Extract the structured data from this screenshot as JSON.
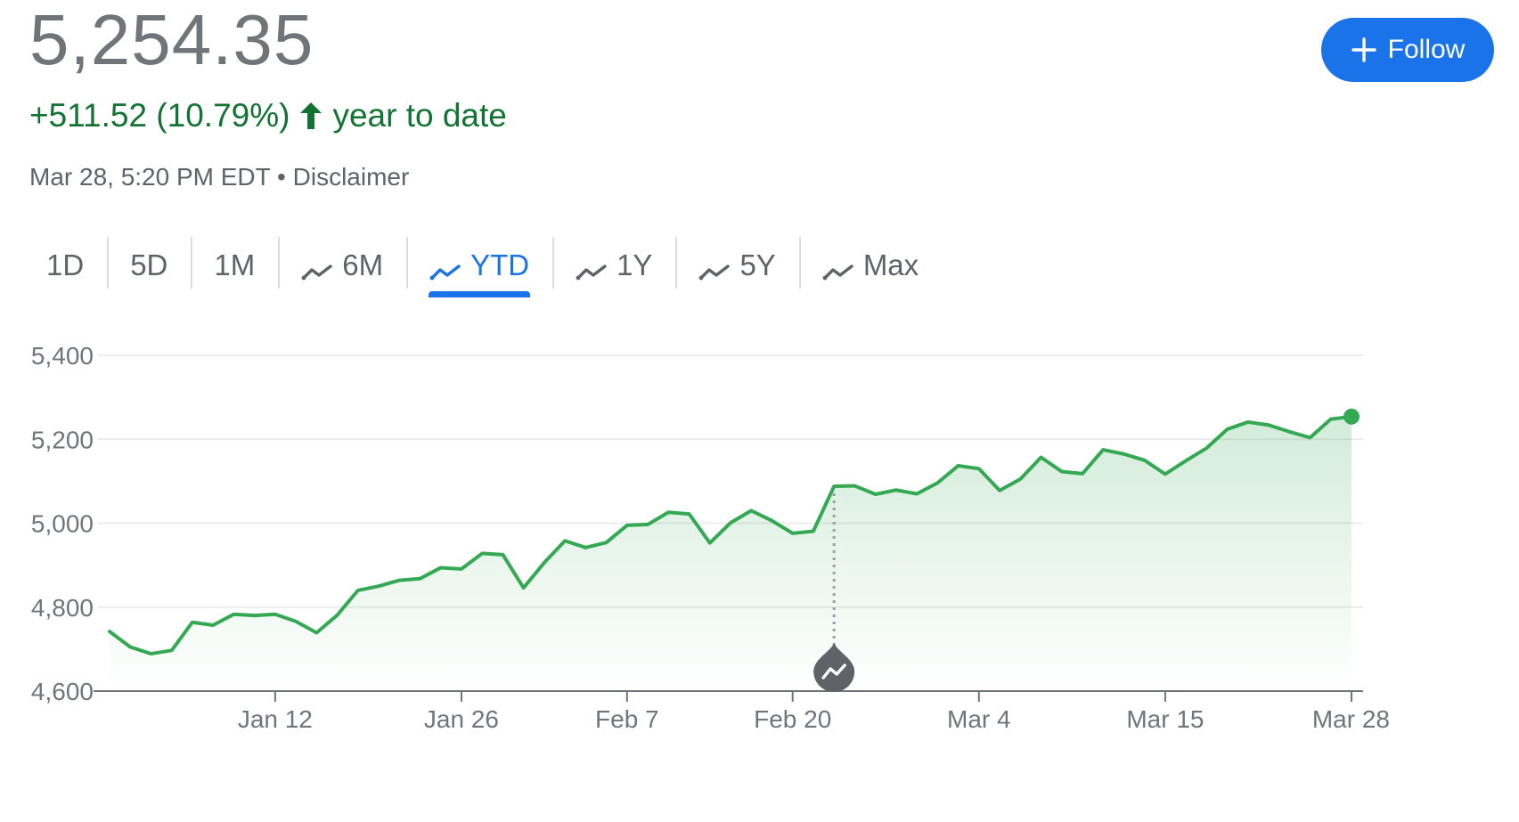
{
  "header": {
    "price": "5,254.35",
    "change": "+511.52 (10.79%)",
    "change_label": "year to date",
    "timestamp": "Mar 28, 5:20 PM EDT",
    "separator": "•",
    "disclaimer": "Disclaimer",
    "follow_label": "Follow"
  },
  "colors": {
    "positive": "#137333",
    "line": "#34a853",
    "accent": "#1a73e8"
  },
  "tabs": [
    {
      "label": "1D",
      "icon": "",
      "active": false
    },
    {
      "label": "5D",
      "icon": "",
      "active": false
    },
    {
      "label": "1M",
      "icon": "",
      "active": false
    },
    {
      "label": "6M",
      "icon": "trend-line-icon",
      "active": false
    },
    {
      "label": "YTD",
      "icon": "trend-line-icon",
      "active": true
    },
    {
      "label": "1Y",
      "icon": "trend-line-icon",
      "active": false
    },
    {
      "label": "5Y",
      "icon": "trend-line-icon",
      "active": false
    },
    {
      "label": "Max",
      "icon": "trend-line-icon",
      "active": false
    }
  ],
  "chart_data": {
    "type": "area",
    "ylim": [
      4600,
      5400
    ],
    "yticks": [
      4600,
      4800,
      5000,
      5200,
      5400
    ],
    "ytick_labels": [
      "4,600",
      "4,800",
      "5,000",
      "5,200",
      "5,400"
    ],
    "xtick_labels": [
      "Jan 12",
      "Jan 26",
      "Feb 7",
      "Feb 20",
      "Mar 4",
      "Mar 15",
      "Mar 28"
    ],
    "xtick_index": [
      8,
      17,
      25,
      33,
      42,
      51,
      60
    ],
    "grid": true,
    "marker_index": 35,
    "marker_icon": "trend-line-icon",
    "series": [
      {
        "values": [
          4742,
          4705,
          4689,
          4697,
          4764,
          4757,
          4783,
          4780,
          4783,
          4766,
          4739,
          4781,
          4840,
          4850,
          4864,
          4868,
          4894,
          4891,
          4928,
          4925,
          4846,
          4906,
          4958,
          4942,
          4954,
          4995,
          4997,
          5026,
          5022,
          4953,
          5001,
          5030,
          5006,
          4976,
          4981,
          5088,
          5089,
          5069,
          5079,
          5070,
          5096,
          5137,
          5130,
          5078,
          5105,
          5157,
          5123,
          5118,
          5175,
          5165,
          5150,
          5117,
          5149,
          5179,
          5224,
          5241,
          5234,
          5218,
          5204,
          5248,
          5254
        ]
      }
    ]
  }
}
